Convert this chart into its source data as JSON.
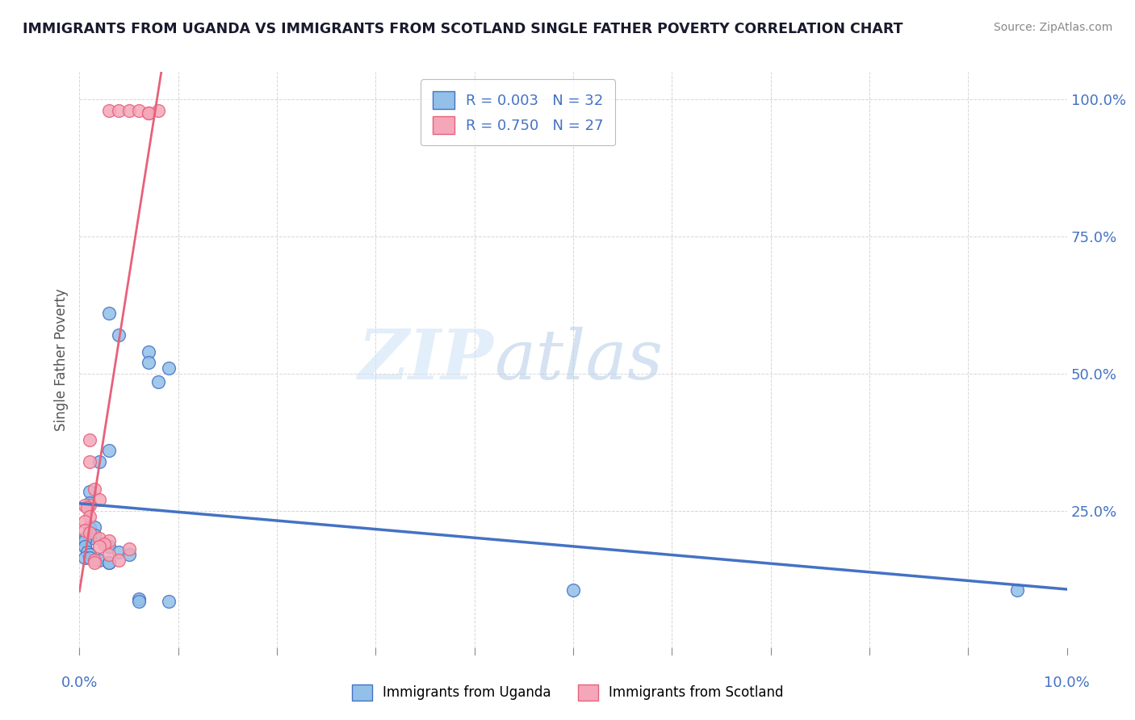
{
  "title": "IMMIGRANTS FROM UGANDA VS IMMIGRANTS FROM SCOTLAND SINGLE FATHER POVERTY CORRELATION CHART",
  "source": "Source: ZipAtlas.com",
  "ylabel": "Single Father Poverty",
  "ytick_labels": [
    "100.0%",
    "75.0%",
    "50.0%",
    "25.0%"
  ],
  "ytick_values": [
    1.0,
    0.75,
    0.5,
    0.25
  ],
  "xtick_values": [
    0.0,
    0.01,
    0.02,
    0.03,
    0.04,
    0.05,
    0.06,
    0.07,
    0.08,
    0.09,
    0.1
  ],
  "xlim": [
    0.0,
    0.1
  ],
  "ylim": [
    0.0,
    1.05
  ],
  "legend_uganda_R": "R = 0.003",
  "legend_uganda_N": "N = 32",
  "legend_scotland_R": "R = 0.750",
  "legend_scotland_N": "N = 27",
  "color_uganda": "#92C0E8",
  "color_scotland": "#F4A7B9",
  "regression_uganda_color": "#4472C4",
  "regression_scotland_color": "#E8607A",
  "uganda_x": [
    0.003,
    0.004,
    0.007,
    0.009,
    0.007,
    0.008,
    0.003,
    0.002,
    0.001,
    0.001,
    0.001,
    0.0015,
    0.0015,
    0.001,
    0.0005,
    0.0005,
    0.0005,
    0.0008,
    0.001,
    0.0005,
    0.001,
    0.002,
    0.003,
    0.003,
    0.003,
    0.004,
    0.005,
    0.05,
    0.095,
    0.006,
    0.006,
    0.009
  ],
  "uganda_y": [
    0.61,
    0.57,
    0.54,
    0.51,
    0.52,
    0.485,
    0.36,
    0.34,
    0.285,
    0.265,
    0.22,
    0.22,
    0.205,
    0.2,
    0.2,
    0.195,
    0.185,
    0.175,
    0.17,
    0.165,
    0.165,
    0.16,
    0.155,
    0.155,
    0.185,
    0.175,
    0.17,
    0.105,
    0.105,
    0.09,
    0.085,
    0.085
  ],
  "scotland_x": [
    0.003,
    0.004,
    0.005,
    0.006,
    0.007,
    0.008,
    0.007,
    0.001,
    0.001,
    0.0015,
    0.002,
    0.001,
    0.0005,
    0.0008,
    0.001,
    0.0005,
    0.0005,
    0.001,
    0.002,
    0.003,
    0.0025,
    0.002,
    0.003,
    0.004,
    0.0015,
    0.0015,
    0.005
  ],
  "scotland_y": [
    0.98,
    0.98,
    0.98,
    0.98,
    0.975,
    0.98,
    0.975,
    0.38,
    0.34,
    0.29,
    0.27,
    0.26,
    0.26,
    0.255,
    0.24,
    0.23,
    0.215,
    0.21,
    0.2,
    0.195,
    0.19,
    0.185,
    0.17,
    0.16,
    0.16,
    0.155,
    0.18
  ],
  "watermark_zip": "ZIP",
  "watermark_atlas": "atlas",
  "background_color": "#FFFFFF",
  "grid_color": "#CCCCCC",
  "title_color": "#1a1a2e",
  "axis_label_color": "#4472C4",
  "legend_R_color": "#4472C4"
}
